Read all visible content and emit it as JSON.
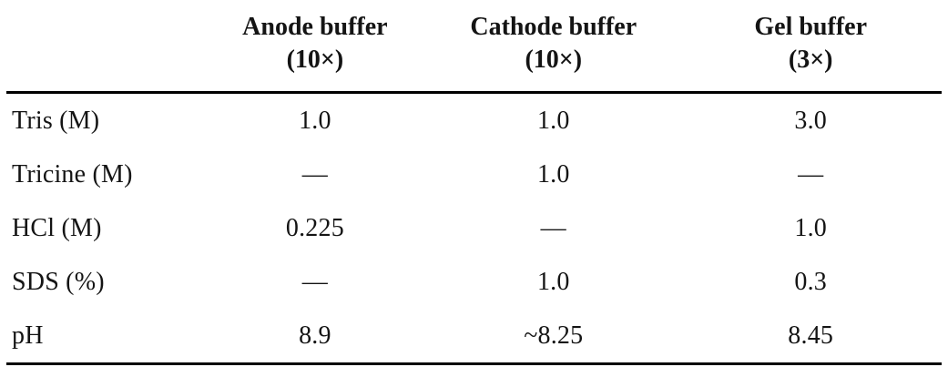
{
  "table": {
    "columns": [
      {
        "line1": "Anode buffer",
        "line2": "(10×)"
      },
      {
        "line1": "Cathode buffer",
        "line2": "(10×)"
      },
      {
        "line1": "Gel buffer",
        "line2": "(3×)"
      }
    ],
    "rows": [
      {
        "label": "Tris (M)",
        "values": [
          "1.0",
          "1.0",
          "3.0"
        ]
      },
      {
        "label": "Tricine (M)",
        "values": [
          "—",
          "1.0",
          "—"
        ]
      },
      {
        "label": "HCl (M)",
        "values": [
          "0.225",
          "—",
          "1.0"
        ]
      },
      {
        "label": "SDS (%)",
        "values": [
          "—",
          "1.0",
          "0.3"
        ]
      },
      {
        "label": "pH",
        "values": [
          "8.9",
          "~8.25",
          "8.45"
        ]
      }
    ]
  },
  "colors": {
    "background": "#ffffff",
    "text": "#141414",
    "rule": "#000000"
  }
}
